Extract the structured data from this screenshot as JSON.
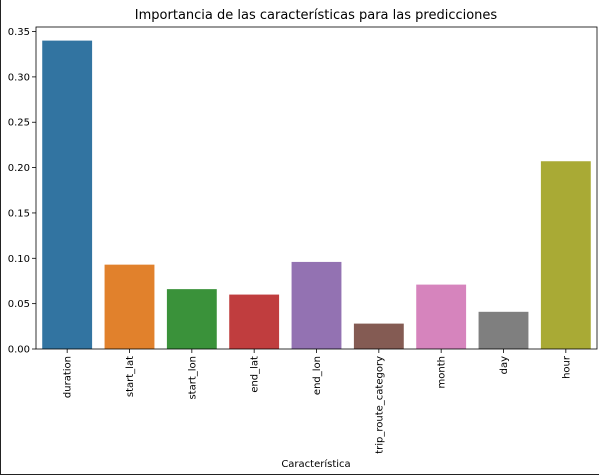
{
  "chart_data": {
    "type": "bar",
    "title": "Importancia de las características para las predicciones",
    "xlabel": "Característica",
    "ylabel": "",
    "categories": [
      "duration",
      "start_lat",
      "start_lon",
      "end_lat",
      "end_lon",
      "trip_route_category",
      "month",
      "day",
      "hour"
    ],
    "values": [
      0.34,
      0.093,
      0.066,
      0.06,
      0.096,
      0.028,
      0.071,
      0.041,
      0.207
    ],
    "colors": [
      "#3274a1",
      "#e1812c",
      "#3a923a",
      "#c03d3e",
      "#9372b2",
      "#845b53",
      "#d684bd",
      "#7f7f7f",
      "#a9aa35"
    ],
    "ylim": [
      0,
      0.355
    ],
    "yticks": [
      0.0,
      0.05,
      0.1,
      0.15,
      0.2,
      0.25,
      0.3,
      0.35
    ],
    "ytick_labels": [
      "0.00",
      "0.05",
      "0.10",
      "0.15",
      "0.20",
      "0.25",
      "0.30",
      "0.35"
    ],
    "grid": false,
    "legend": "none"
  }
}
